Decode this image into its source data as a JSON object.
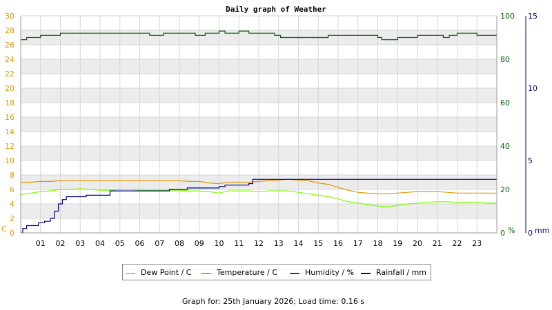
{
  "chart_data": {
    "type": "line",
    "title": "Daily graph of Weather",
    "x_tick_labels": [
      "01",
      "02",
      "03",
      "04",
      "05",
      "06",
      "07",
      "08",
      "09",
      "10",
      "11",
      "12",
      "13",
      "14",
      "15",
      "16",
      "17",
      "18",
      "19",
      "20",
      "21",
      "22",
      "23"
    ],
    "xlim": [
      0,
      24
    ],
    "axes": {
      "left": {
        "unit_label": "C",
        "ylim": [
          0,
          30
        ],
        "ticks": [
          0,
          2,
          4,
          6,
          8,
          10,
          12,
          14,
          16,
          18,
          20,
          22,
          24,
          26,
          28,
          30
        ],
        "color": "#e69500"
      },
      "right1": {
        "unit_label": "%",
        "ylim": [
          0,
          100
        ],
        "ticks": [
          0,
          20,
          40,
          60,
          80,
          100
        ],
        "color": "#006400"
      },
      "right2": {
        "unit_label": "mm",
        "ylim": [
          0,
          15
        ],
        "ticks": [
          0,
          5,
          10,
          15
        ],
        "color": "#00008b"
      }
    },
    "grid": true,
    "legend_position": "bottom",
    "series": [
      {
        "name": "Dew Point / C",
        "axis": "left",
        "color": "#7cfc00",
        "x": [
          0,
          0.5,
          1,
          1.5,
          2,
          2.5,
          3,
          3.5,
          4,
          4.5,
          5,
          5.5,
          6,
          6.5,
          7,
          7.5,
          8,
          8.5,
          9,
          9.5,
          10,
          10.5,
          11,
          11.5,
          12,
          12.5,
          13,
          13.5,
          14,
          14.5,
          15,
          15.5,
          16,
          16.5,
          17,
          17.5,
          18,
          18.5,
          19,
          19.5,
          20,
          20.5,
          21,
          21.5,
          22,
          22.5,
          23,
          23.5,
          24
        ],
        "y": [
          5.3,
          5.5,
          5.7,
          5.8,
          6.0,
          6.0,
          6.1,
          6.0,
          5.9,
          5.9,
          6.0,
          6.0,
          5.9,
          5.9,
          5.9,
          5.9,
          5.9,
          5.8,
          5.8,
          5.7,
          5.5,
          5.8,
          5.8,
          5.8,
          5.7,
          5.8,
          5.8,
          5.8,
          5.6,
          5.4,
          5.2,
          5.0,
          4.7,
          4.3,
          4.1,
          3.9,
          3.7,
          3.6,
          3.8,
          4.0,
          4.1,
          4.2,
          4.3,
          4.3,
          4.2,
          4.2,
          4.2,
          4.1,
          4.1
        ]
      },
      {
        "name": "Temperature / C",
        "axis": "left",
        "color": "#e69500",
        "x": [
          0,
          0.5,
          1,
          1.5,
          2,
          2.5,
          3,
          3.5,
          4,
          4.5,
          5,
          5.5,
          6,
          6.5,
          7,
          7.5,
          8,
          8.5,
          9,
          9.5,
          10,
          10.5,
          11,
          11.5,
          12,
          12.5,
          13,
          13.5,
          14,
          14.5,
          15,
          15.5,
          16,
          16.5,
          17,
          17.5,
          18,
          18.5,
          19,
          19.5,
          20,
          20.5,
          21,
          21.5,
          22,
          22.5,
          23,
          23.5,
          24
        ],
        "y": [
          7.0,
          7.0,
          7.1,
          7.1,
          7.2,
          7.2,
          7.2,
          7.2,
          7.2,
          7.2,
          7.2,
          7.2,
          7.2,
          7.2,
          7.2,
          7.2,
          7.2,
          7.1,
          7.1,
          6.9,
          6.8,
          7.0,
          7.0,
          7.0,
          7.1,
          7.2,
          7.3,
          7.4,
          7.3,
          7.2,
          6.9,
          6.7,
          6.3,
          5.9,
          5.6,
          5.5,
          5.4,
          5.4,
          5.5,
          5.6,
          5.7,
          5.7,
          5.7,
          5.6,
          5.5,
          5.5,
          5.5,
          5.5,
          5.5
        ]
      },
      {
        "name": "Humidity / %",
        "axis": "right1",
        "color": "#006400",
        "x": [
          0,
          0.2,
          0.3,
          0.9,
          1.0,
          2.0,
          6.0,
          6.5,
          7.2,
          8.8,
          9.3,
          9.8,
          10.0,
          10.3,
          11.0,
          11.5,
          11.6,
          12.0,
          12.8,
          13.1,
          15.0,
          15.5,
          16.0,
          17.5,
          18.0,
          18.2,
          18.8,
          19.0,
          19.8,
          20.0,
          21.0,
          21.3,
          21.6,
          22.0,
          23.0,
          24.0
        ],
        "x_note": "",
        "y": [
          89,
          89,
          90,
          90,
          91,
          92,
          92,
          91,
          92,
          91,
          92,
          92,
          93,
          92,
          93,
          92,
          92,
          92,
          91,
          90,
          90,
          91,
          91,
          91,
          90,
          89,
          89,
          90,
          90,
          91,
          91,
          90,
          91,
          92,
          91,
          91
        ]
      },
      {
        "name": "Rainfall / mm",
        "axis": "right2",
        "color": "#00008b",
        "x": [
          0,
          0.1,
          0.3,
          0.9,
          1.2,
          1.5,
          1.7,
          1.9,
          2.1,
          2.3,
          3.3,
          4.5,
          6.0,
          7.5,
          8.4,
          9.0,
          10.0,
          10.3,
          11.5,
          11.7,
          12.5,
          13.0,
          24.0
        ],
        "y": [
          0.0,
          0.3,
          0.5,
          0.7,
          0.8,
          1.0,
          1.5,
          2.0,
          2.3,
          2.5,
          2.6,
          2.9,
          2.9,
          3.0,
          3.1,
          3.1,
          3.2,
          3.3,
          3.4,
          3.7,
          3.7,
          3.7,
          3.7
        ]
      }
    ]
  },
  "footer": {
    "text": "Graph for: 25th January 2026; Load time: 0.16 s"
  }
}
